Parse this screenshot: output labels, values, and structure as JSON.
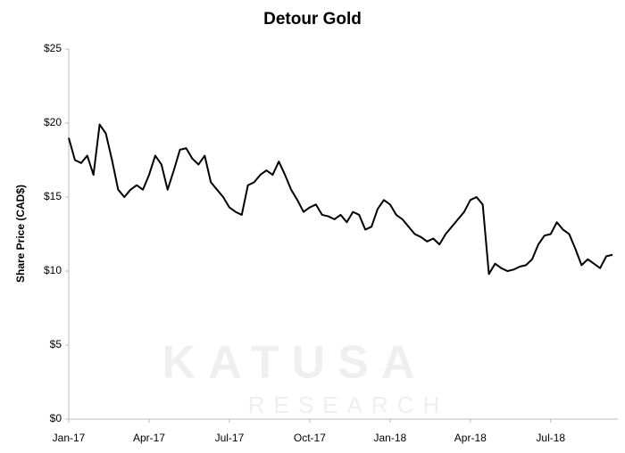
{
  "chart_data": {
    "type": "line",
    "title": "Detour Gold",
    "y_label": "Share Price (CAD$)",
    "watermark": [
      "KATUSA",
      "RESEARCH"
    ],
    "color": "#000000",
    "categories": [
      "Jan-17",
      null,
      null,
      null,
      null,
      null,
      null,
      null,
      null,
      null,
      null,
      null,
      null,
      "Apr-17",
      null,
      null,
      null,
      null,
      null,
      null,
      null,
      null,
      null,
      null,
      null,
      null,
      "Jul-17",
      null,
      null,
      null,
      null,
      null,
      null,
      null,
      null,
      null,
      null,
      null,
      null,
      "Oct-17",
      null,
      null,
      null,
      null,
      null,
      null,
      null,
      null,
      null,
      null,
      null,
      null,
      "Jan-18",
      null,
      null,
      null,
      null,
      null,
      null,
      null,
      null,
      null,
      null,
      null,
      null,
      "Apr-18",
      null,
      null,
      null,
      null,
      null,
      null,
      null,
      null,
      null,
      null,
      null,
      null,
      "Jul-18",
      null,
      null,
      null,
      null,
      null,
      null,
      null,
      null,
      null,
      null
    ],
    "values": [
      19.0,
      17.5,
      17.3,
      17.8,
      16.5,
      19.9,
      19.3,
      17.5,
      15.5,
      15.0,
      15.5,
      15.8,
      15.5,
      16.5,
      17.8,
      17.2,
      15.5,
      16.8,
      18.2,
      18.3,
      17.6,
      17.2,
      17.8,
      16.0,
      15.5,
      15.0,
      14.3,
      14.0,
      13.8,
      15.8,
      16.0,
      16.5,
      16.8,
      16.5,
      17.4,
      16.5,
      15.5,
      14.8,
      14.0,
      14.3,
      14.5,
      13.8,
      13.7,
      13.5,
      13.8,
      13.3,
      14.0,
      13.8,
      12.8,
      13.0,
      14.2,
      14.8,
      14.5,
      13.8,
      13.5,
      13.0,
      12.5,
      12.3,
      12.0,
      12.2,
      11.8,
      12.5,
      13.0,
      13.5,
      14.0,
      14.8,
      15.0,
      14.5,
      9.8,
      10.5,
      10.2,
      10.0,
      10.1,
      10.3,
      10.4,
      10.8,
      11.8,
      12.4,
      12.5,
      13.3,
      12.8,
      12.5,
      11.5,
      10.4,
      10.8,
      10.5,
      10.2,
      11.0,
      11.1
    ],
    "ylim": [
      0,
      25
    ],
    "yticks": [
      {
        "value": 0,
        "label": "$0"
      },
      {
        "value": 5,
        "label": "$5"
      },
      {
        "value": 10,
        "label": "$10"
      },
      {
        "value": 15,
        "label": "$15"
      },
      {
        "value": 20,
        "label": "$20"
      },
      {
        "value": 25,
        "label": "$25"
      }
    ],
    "grid": false
  }
}
